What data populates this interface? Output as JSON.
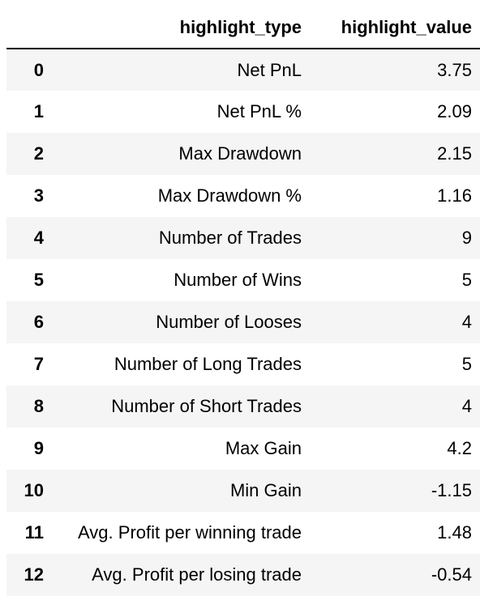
{
  "table": {
    "columns": [
      "",
      "highlight_type",
      "highlight_value"
    ],
    "rows": [
      {
        "index": "0",
        "highlight_type": "Net PnL",
        "highlight_value": "3.75"
      },
      {
        "index": "1",
        "highlight_type": "Net PnL %",
        "highlight_value": "2.09"
      },
      {
        "index": "2",
        "highlight_type": "Max Drawdown",
        "highlight_value": "2.15"
      },
      {
        "index": "3",
        "highlight_type": "Max Drawdown %",
        "highlight_value": "1.16"
      },
      {
        "index": "4",
        "highlight_type": "Number of Trades",
        "highlight_value": "9"
      },
      {
        "index": "5",
        "highlight_type": "Number of Wins",
        "highlight_value": "5"
      },
      {
        "index": "6",
        "highlight_type": "Number of Looses",
        "highlight_value": "4"
      },
      {
        "index": "7",
        "highlight_type": "Number of Long Trades",
        "highlight_value": "5"
      },
      {
        "index": "8",
        "highlight_type": "Number of Short Trades",
        "highlight_value": "4"
      },
      {
        "index": "9",
        "highlight_type": "Max Gain",
        "highlight_value": "4.2"
      },
      {
        "index": "10",
        "highlight_type": "Min Gain",
        "highlight_value": "-1.15"
      },
      {
        "index": "11",
        "highlight_type": "Avg. Profit per winning trade",
        "highlight_value": "1.48"
      },
      {
        "index": "12",
        "highlight_type": "Avg. Profit per losing trade",
        "highlight_value": "-0.54"
      }
    ]
  },
  "colors": {
    "stripe": "#f5f5f5",
    "background": "#ffffff",
    "text": "#000000",
    "header_rule": "#000000"
  }
}
